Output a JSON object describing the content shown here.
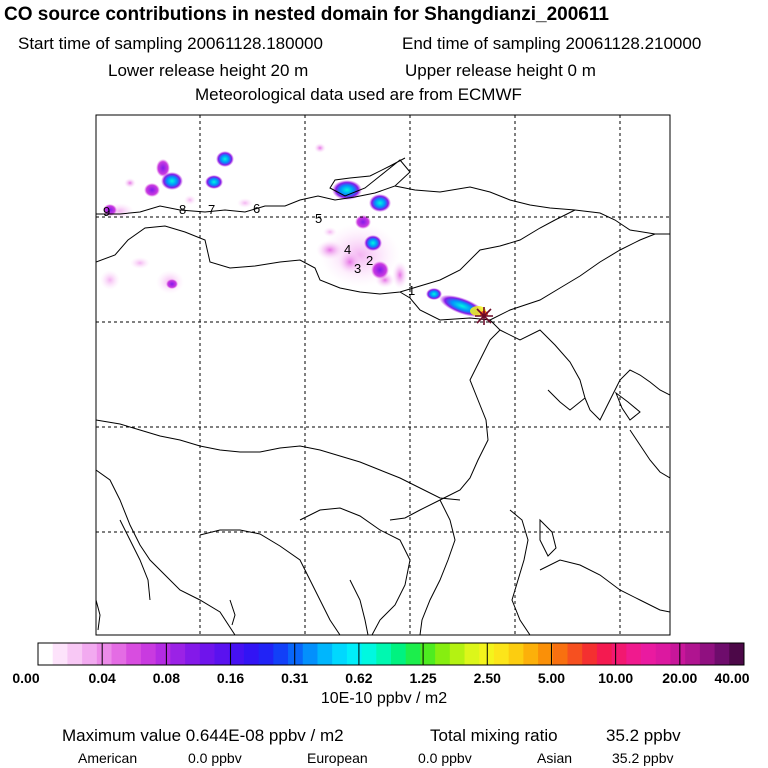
{
  "header": {
    "title": "CO  source contributions in nested domain for Shangdianzi_200611",
    "start_time": "Start time of sampling 20061128.180000",
    "end_time": "End time of sampling 20061128.210000",
    "lower_release": "Lower release height   20 m",
    "upper_release": "Upper release height    0 m",
    "met_data": "Meteorological data used are from ECMWF"
  },
  "map": {
    "cluster_labels": [
      "1",
      "2",
      "3",
      "4",
      "5",
      "6",
      "7",
      "8",
      "9"
    ],
    "receptor_icon": "star-marker-icon"
  },
  "colorbar": {
    "tick_labels": [
      "0.00",
      "0.04",
      "0.08",
      "0.16",
      "0.31",
      "0.62",
      "1.25",
      "2.50",
      "5.00",
      "10.00",
      "20.00",
      "40.00"
    ],
    "unit": "10E-10 ppbv / m2",
    "colors": [
      "#ffffff",
      "#fde3fb",
      "#f8c8f5",
      "#f2aaf0",
      "#ec8be9",
      "#e46ce4",
      "#d84de0",
      "#c93ae0",
      "#b42be3",
      "#9b22e6",
      "#8419e9",
      "#6f14ec",
      "#5a12ef",
      "#4611f2",
      "#3214f4",
      "#2123f6",
      "#1240f8",
      "#0866fa",
      "#0390fc",
      "#00b6fd",
      "#00d8fe",
      "#00eefa",
      "#00f8e0",
      "#00f8b0",
      "#00f280",
      "#1cee4c",
      "#4eec20",
      "#86ee10",
      "#b4f212",
      "#dcf61a",
      "#f4f41c",
      "#fce51a",
      "#fccd10",
      "#fcb00a",
      "#fa9008",
      "#f87010",
      "#f65020",
      "#f43030",
      "#f41a50",
      "#f21870",
      "#f01a8e",
      "#ea1aa0",
      "#dc18a0",
      "#c8169a",
      "#b01490",
      "#901080",
      "#6e0c6c",
      "#4c0848"
    ]
  },
  "footer": {
    "max_value": "Maximum value  0.644E-08 ppbv / m2",
    "total_label": "Total mixing ratio",
    "total_value": "35.2 ppbv",
    "regions": [
      {
        "name": "American",
        "value": "0.0 ppbv"
      },
      {
        "name": "European",
        "value": "0.0 ppbv"
      },
      {
        "name": "Asian",
        "value": "35.2 ppbv"
      }
    ]
  }
}
